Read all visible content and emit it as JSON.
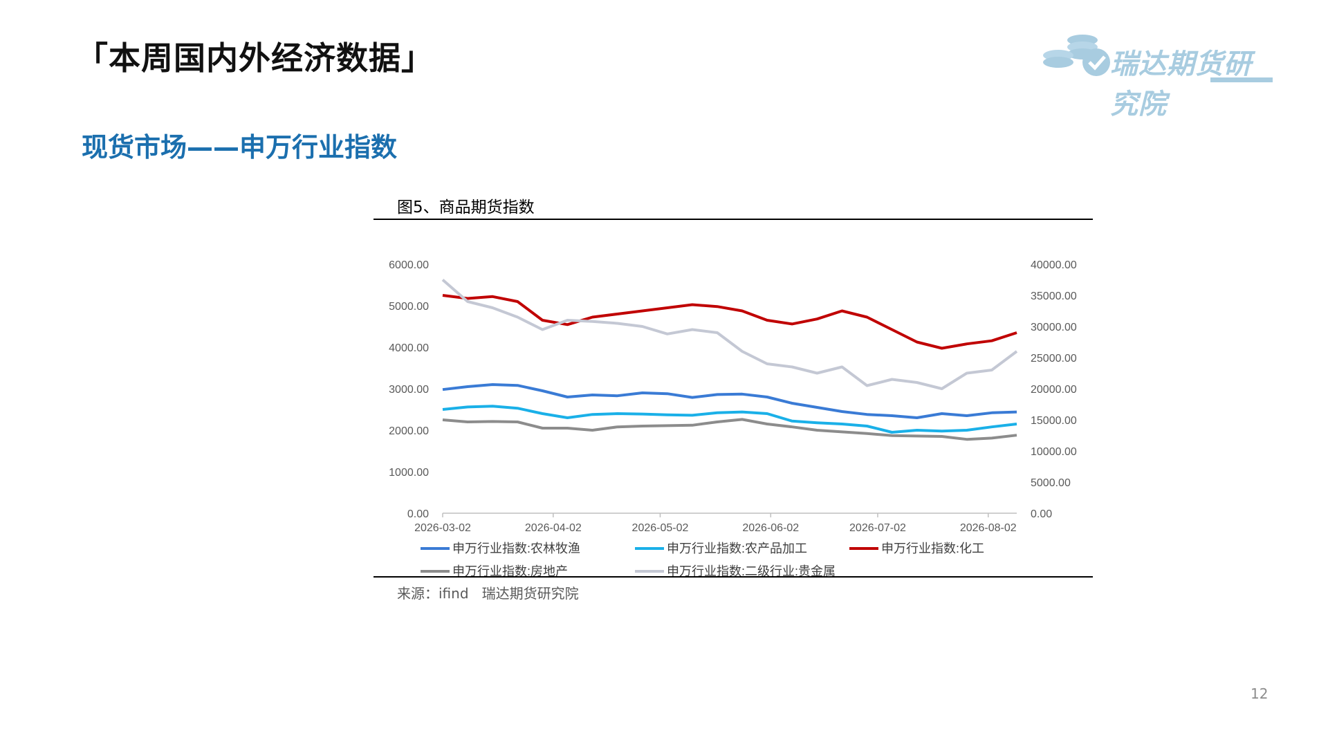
{
  "page": {
    "title": "「本周国内外经济数据」",
    "section_title": "现货市场——申万行业指数",
    "page_number": "12"
  },
  "logo": {
    "text": "瑞达期货研究院",
    "color": "#a8cce0"
  },
  "chart": {
    "title": "图5、商品期货指数",
    "source": "来源：ifind   瑞达期货研究院"
  },
  "chart_data": {
    "type": "line",
    "x": [
      "2026-03-02",
      "2026-03-09",
      "2026-03-16",
      "2026-03-23",
      "2026-03-30",
      "2026-04-06",
      "2026-04-13",
      "2026-04-20",
      "2026-04-27",
      "2026-05-04",
      "2026-05-11",
      "2026-05-18",
      "2026-05-25",
      "2026-06-01",
      "2026-06-08",
      "2026-06-15",
      "2026-06-22",
      "2026-06-29",
      "2026-07-06",
      "2026-07-13",
      "2026-07-20",
      "2026-07-27",
      "2026-08-03",
      "2026-08-10"
    ],
    "x_ticks": [
      "2026-03-02",
      "2026-04-02",
      "2026-05-02",
      "2026-06-02",
      "2026-07-02",
      "2026-08-02"
    ],
    "y_left": {
      "min": 0,
      "max": 6000,
      "ticks": [
        "0.00",
        "1000.00",
        "2000.00",
        "3000.00",
        "4000.00",
        "5000.00",
        "6000.00"
      ]
    },
    "y_right": {
      "min": 0,
      "max": 40000,
      "ticks": [
        "0.00",
        "5000.00",
        "10000.00",
        "15000.00",
        "20000.00",
        "25000.00",
        "30000.00",
        "35000.00",
        "40000.00"
      ]
    },
    "series": [
      {
        "name": "申万行业指数:农林牧渔",
        "axis": "left",
        "color": "#3a7bd5",
        "values": [
          2980,
          3050,
          3100,
          3080,
          2950,
          2800,
          2850,
          2830,
          2900,
          2880,
          2790,
          2860,
          2870,
          2800,
          2650,
          2550,
          2450,
          2380,
          2350,
          2300,
          2400,
          2350,
          2420,
          2440
        ]
      },
      {
        "name": "申万行业指数:农产品加工",
        "axis": "left",
        "color": "#1ab0e8",
        "values": [
          2500,
          2560,
          2580,
          2530,
          2400,
          2300,
          2380,
          2400,
          2390,
          2370,
          2360,
          2420,
          2440,
          2400,
          2220,
          2180,
          2150,
          2100,
          1950,
          2000,
          1980,
          2000,
          2080,
          2150
        ]
      },
      {
        "name": "申万行业指数:化工",
        "axis": "right",
        "color": "#c00000",
        "values": [
          35000,
          34500,
          34800,
          34000,
          31000,
          30300,
          31500,
          32000,
          32500,
          33000,
          33500,
          33200,
          32500,
          31000,
          30400,
          31200,
          32500,
          31500,
          29500,
          27500,
          26500,
          27200,
          27700,
          29000
        ]
      },
      {
        "name": "申万行业指数:房地产",
        "axis": "left",
        "color": "#8c8c8c",
        "values": [
          2250,
          2200,
          2210,
          2200,
          2050,
          2050,
          2000,
          2080,
          2100,
          2110,
          2120,
          2200,
          2260,
          2150,
          2080,
          2000,
          1960,
          1920,
          1870,
          1860,
          1850,
          1780,
          1810,
          1880
        ]
      },
      {
        "name": "申万行业指数:二级行业:贵金属",
        "axis": "right",
        "color": "#c4c8d4",
        "values": [
          37500,
          34000,
          33000,
          31500,
          29500,
          31000,
          30800,
          30500,
          30000,
          28800,
          29500,
          29000,
          26000,
          24000,
          23500,
          22500,
          23500,
          20500,
          21500,
          21000,
          20000,
          22500,
          23000,
          26000
        ]
      }
    ]
  }
}
